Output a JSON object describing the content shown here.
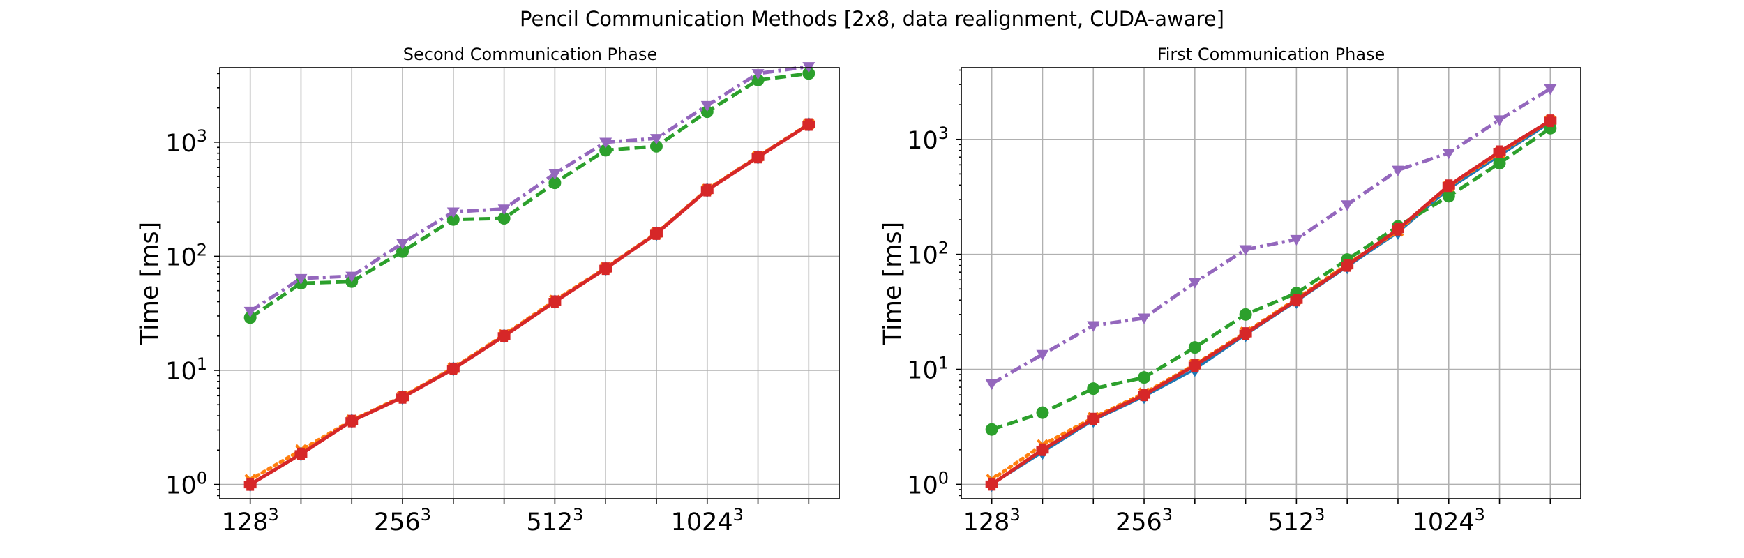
{
  "figure_title": "Pencil Communication Methods [2x8, data realignment, CUDA-aware]",
  "chart_data": [
    {
      "type": "line",
      "title": "Second Communication Phase",
      "xlabel": "",
      "ylabel": "Time [ms]",
      "yscale": "log",
      "ylim": [
        0.75,
        4500
      ],
      "xlim": [
        -0.6,
        11.6
      ],
      "grid": true,
      "x": [
        0,
        1,
        2,
        3,
        4,
        5,
        6,
        7,
        8,
        9,
        10,
        11
      ],
      "xtick_labels": [
        {
          "base": "128",
          "exp": "3"
        },
        {
          "base": "256",
          "exp": "3"
        },
        {
          "base": "512",
          "exp": "3"
        },
        {
          "base": "1024",
          "exp": "3"
        }
      ],
      "ytick_labels": [
        {
          "base": "10",
          "exp": "0",
          "value": 1
        },
        {
          "base": "10",
          "exp": "1",
          "value": 10
        },
        {
          "base": "10",
          "exp": "2",
          "value": 100
        },
        {
          "base": "10",
          "exp": "3",
          "value": 1000
        }
      ],
      "series": [
        {
          "color": "#1f77b4",
          "dash": "solid",
          "marker": "diamond",
          "values": [
            1.0,
            1.85,
            3.6,
            5.8,
            10.3,
            20,
            40,
            78,
            158,
            380,
            740,
            1430
          ]
        },
        {
          "color": "#ff7f0e",
          "dash": "dotted",
          "marker": "x",
          "values": [
            1.1,
            2.0,
            3.65,
            5.9,
            10.5,
            20.5,
            41,
            79,
            160,
            385,
            750,
            1440
          ]
        },
        {
          "color": "#2ca02c",
          "dash": "dashed",
          "marker": "circle",
          "values": [
            29,
            58,
            60,
            110,
            210,
            215,
            440,
            850,
            920,
            1850,
            3500,
            4000
          ]
        },
        {
          "color": "#d62728",
          "dash": "solid",
          "marker": "plus",
          "values": [
            1.0,
            1.85,
            3.6,
            5.8,
            10.3,
            20,
            40,
            78,
            158,
            380,
            740,
            1430
          ]
        },
        {
          "color": "#9467bd",
          "dash": "dashdot",
          "marker": "triangle-down",
          "values": [
            33,
            64,
            67,
            130,
            245,
            260,
            530,
            1000,
            1080,
            2100,
            4000,
            4600
          ]
        }
      ]
    },
    {
      "type": "line",
      "title": "First Communication Phase",
      "xlabel": "",
      "ylabel": "Time [ms]",
      "yscale": "log",
      "ylim": [
        0.75,
        4200
      ],
      "xlim": [
        -0.6,
        11.6
      ],
      "grid": true,
      "x": [
        0,
        1,
        2,
        3,
        4,
        5,
        6,
        7,
        8,
        9,
        10,
        11
      ],
      "xtick_labels": [
        {
          "base": "128",
          "exp": "3"
        },
        {
          "base": "256",
          "exp": "3"
        },
        {
          "base": "512",
          "exp": "3"
        },
        {
          "base": "1024",
          "exp": "3"
        }
      ],
      "ytick_labels": [
        {
          "base": "10",
          "exp": "0",
          "value": 1
        },
        {
          "base": "10",
          "exp": "1",
          "value": 10
        },
        {
          "base": "10",
          "exp": "2",
          "value": 100
        },
        {
          "base": "10",
          "exp": "3",
          "value": 1000
        }
      ],
      "series": [
        {
          "color": "#1f77b4",
          "dash": "solid",
          "marker": "diamond",
          "values": [
            1.0,
            1.9,
            3.6,
            5.8,
            10,
            20,
            39,
            78,
            155,
            370,
            720,
            1400
          ]
        },
        {
          "color": "#ff7f0e",
          "dash": "dotted",
          "marker": "x",
          "values": [
            1.1,
            2.2,
            3.8,
            6.2,
            11,
            21,
            41,
            82,
            160,
            390,
            760,
            1450
          ]
        },
        {
          "color": "#2ca02c",
          "dash": "dashed",
          "marker": "circle",
          "values": [
            3.0,
            4.2,
            6.8,
            8.5,
            15.5,
            30,
            46,
            90,
            175,
            320,
            620,
            1250
          ]
        },
        {
          "color": "#d62728",
          "dash": "solid",
          "marker": "plus",
          "values": [
            1.0,
            2.0,
            3.7,
            6.0,
            10.8,
            20.5,
            40,
            80,
            165,
            395,
            780,
            1450
          ]
        },
        {
          "color": "#9467bd",
          "dash": "dashdot",
          "marker": "triangle-down",
          "values": [
            7.5,
            13.5,
            24,
            28,
            57,
            110,
            135,
            270,
            540,
            760,
            1480,
            2750
          ]
        }
      ]
    }
  ]
}
